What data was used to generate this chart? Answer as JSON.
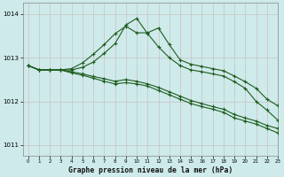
{
  "background_color": "#ceeaea",
  "grid_color": "#aacccc",
  "line_color": "#1e5c1e",
  "xlabel": "Graphe pression niveau de la mer (hPa)",
  "xlim": [
    -0.5,
    23
  ],
  "ylim": [
    1010.75,
    1014.25
  ],
  "yticks": [
    1011,
    1012,
    1013,
    1014
  ],
  "xticks": [
    0,
    1,
    2,
    3,
    4,
    5,
    6,
    7,
    8,
    9,
    10,
    11,
    12,
    13,
    14,
    15,
    16,
    17,
    18,
    19,
    20,
    21,
    22,
    23
  ],
  "series": [
    [
      1012.85,
      1012.72,
      1012.72,
      1012.72,
      1012.75,
      1012.88,
      1013.08,
      1013.28,
      1013.52,
      1013.72,
      1013.55,
      1013.55,
      1013.65,
      1013.28,
      1012.92,
      1012.82,
      1012.78,
      1012.75,
      1012.68,
      1012.55,
      1012.42,
      1012.28,
      1012.02,
      1011.88
    ],
    [
      1012.85,
      1012.72,
      1012.72,
      1012.72,
      1012.72,
      1012.78,
      1012.88,
      1013.08,
      1013.28,
      1013.72,
      1013.88,
      1013.52,
      1013.22,
      1012.98,
      1012.78,
      1012.68,
      1012.65,
      1012.6,
      1012.55,
      1012.42,
      1012.28,
      1011.98,
      1011.78,
      1011.55
    ],
    [
      1012.85,
      1012.72,
      1012.72,
      1012.72,
      1012.68,
      1012.65,
      1012.62,
      1012.58,
      1012.52,
      1012.52,
      1012.48,
      1012.42,
      1012.35,
      1012.25,
      1012.12,
      1012.02,
      1011.95,
      1011.88,
      1011.82,
      1011.7,
      1011.62,
      1011.55,
      1011.45,
      1011.38
    ],
    [
      1012.85,
      1012.72,
      1012.72,
      1012.72,
      1012.68,
      1012.62,
      1012.55,
      1012.48,
      1012.42,
      1012.45,
      1012.42,
      1012.38,
      1012.28,
      1012.18,
      1012.08,
      1011.98,
      1011.92,
      1011.85,
      1011.78,
      1011.65,
      1011.58,
      1011.52,
      1011.42,
      1011.32
    ]
  ],
  "series_with_markers": [
    0,
    1,
    2,
    3
  ],
  "marker_x": {
    "0": [
      0,
      1,
      2,
      3,
      5,
      6,
      7,
      8,
      9,
      11,
      12,
      13,
      14,
      15,
      16,
      17,
      18,
      19,
      21
    ],
    "1": [
      0,
      1,
      5,
      6,
      7,
      8,
      9,
      10,
      11,
      12,
      13,
      16,
      17,
      18,
      20,
      21,
      22,
      23
    ],
    "2": [
      0,
      4,
      20,
      21,
      22,
      23
    ],
    "3": [
      0,
      4,
      20,
      21,
      22,
      23
    ]
  }
}
